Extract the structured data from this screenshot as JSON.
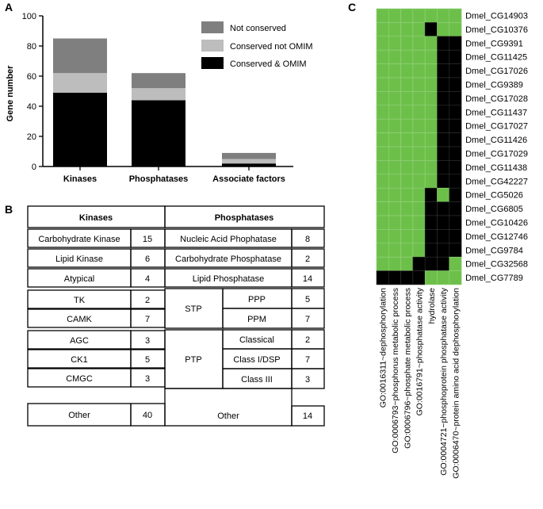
{
  "panels": {
    "a": "A",
    "b": "B",
    "c": "C"
  },
  "chart_data": [
    {
      "type": "bar",
      "stacked": true,
      "title": "",
      "ylabel": "Gene number",
      "xlabel": "",
      "ylim": [
        0,
        100
      ],
      "yticks": [
        0,
        20,
        40,
        60,
        80,
        100
      ],
      "categories": [
        "Kinases",
        "Phosphatases",
        "Associate factors"
      ],
      "series": [
        {
          "name": "Conserved & OMIM",
          "color": "#000000",
          "values": [
            49,
            44,
            2
          ]
        },
        {
          "name": "Conserved not OMIM",
          "color": "#bdbdbd",
          "values": [
            13,
            8,
            3
          ]
        },
        {
          "name": "Not conserved",
          "color": "#7f7f7f",
          "values": [
            23,
            10,
            4
          ]
        }
      ],
      "legend_order": [
        "Not conserved",
        "Conserved not OMIM",
        "Conserved & OMIM"
      ],
      "legend_position": "top-right"
    },
    {
      "type": "heatmap",
      "rows": [
        "Dmel_CG14903",
        "Dmel_CG10376",
        "Dmel_CG9391",
        "Dmel_CG11425",
        "Dmel_CG17026",
        "Dmel_CG9389",
        "Dmel_CG17028",
        "Dmel_CG11437",
        "Dmel_CG17027",
        "Dmel_CG11426",
        "Dmel_CG17029",
        "Dmel_CG11438",
        "Dmel_CG42227",
        "Dmel_CG5026",
        "Dmel_CG6805",
        "Dmel_CG10426",
        "Dmel_CG12746",
        "Dmel_CG9784",
        "Dmel_CG32568",
        "Dmel_CG7789"
      ],
      "columns": [
        "GO:0016311~dephosphorylation",
        "GO:0006793~phosphorus metabolic process",
        "GO:0006796~phosphate metabolic process",
        "GO:0016791~phosphatase activity",
        "hydrolase",
        "GO:0004721~phosphoprotein phosphatase activity",
        "GO:0006470~protein amino acid dephosphorylation"
      ],
      "values": [
        [
          1,
          1,
          1,
          1,
          1,
          1,
          1
        ],
        [
          1,
          1,
          1,
          1,
          0,
          1,
          1
        ],
        [
          1,
          1,
          1,
          1,
          1,
          0,
          0
        ],
        [
          1,
          1,
          1,
          1,
          1,
          0,
          0
        ],
        [
          1,
          1,
          1,
          1,
          1,
          0,
          0
        ],
        [
          1,
          1,
          1,
          1,
          1,
          0,
          0
        ],
        [
          1,
          1,
          1,
          1,
          1,
          0,
          0
        ],
        [
          1,
          1,
          1,
          1,
          1,
          0,
          0
        ],
        [
          1,
          1,
          1,
          1,
          1,
          0,
          0
        ],
        [
          1,
          1,
          1,
          1,
          1,
          0,
          0
        ],
        [
          1,
          1,
          1,
          1,
          1,
          0,
          0
        ],
        [
          1,
          1,
          1,
          1,
          1,
          0,
          0
        ],
        [
          1,
          1,
          1,
          1,
          1,
          0,
          0
        ],
        [
          1,
          1,
          1,
          1,
          0,
          1,
          0
        ],
        [
          1,
          1,
          1,
          1,
          0,
          0,
          0
        ],
        [
          1,
          1,
          1,
          1,
          0,
          0,
          0
        ],
        [
          1,
          1,
          1,
          1,
          0,
          0,
          0
        ],
        [
          1,
          1,
          1,
          1,
          0,
          0,
          0
        ],
        [
          1,
          1,
          1,
          0,
          0,
          0,
          1
        ],
        [
          0,
          0,
          0,
          0,
          1,
          1,
          1
        ]
      ],
      "colors": {
        "present": "#6cc04a",
        "absent": "#000000",
        "grid": "#9ad07f"
      }
    }
  ],
  "table": {
    "kinases_header": "Kinases",
    "phosphatases_header": "Phosphatases",
    "kinases": [
      {
        "name": "Carbohydrate Kinase",
        "count": "15"
      },
      {
        "name": "Lipid Kinase",
        "count": "6"
      },
      {
        "name": "Atypical",
        "count": "4"
      },
      {
        "name": "TK",
        "count": "2"
      },
      {
        "name": "CAMK",
        "count": "7"
      },
      {
        "name": "AGC",
        "count": "3"
      },
      {
        "name": "CK1",
        "count": "5"
      },
      {
        "name": "CMGC",
        "count": "3"
      },
      {
        "name": "Other",
        "count": "40"
      }
    ],
    "phosphatases": {
      "nucleic": {
        "name": "Nucleic Acid Phophatase",
        "count": "8"
      },
      "carbohydrate": {
        "name": "Carbohydrate Phosphatase",
        "count": "2"
      },
      "lipid": {
        "name": "Lipid Phosphatase",
        "count": "14"
      },
      "stp": {
        "name": "STP",
        "ppp": "PPP",
        "ppp_count": "5",
        "ppm": "PPM",
        "ppm_count": "7"
      },
      "ptp": {
        "name": "PTP",
        "classical": "Classical",
        "classical_count": "2",
        "classi": "Class I/DSP",
        "classi_count": "7",
        "classiii": "Class III",
        "classiii_count": "3"
      },
      "other": {
        "name": "Other",
        "count": "14"
      }
    }
  }
}
